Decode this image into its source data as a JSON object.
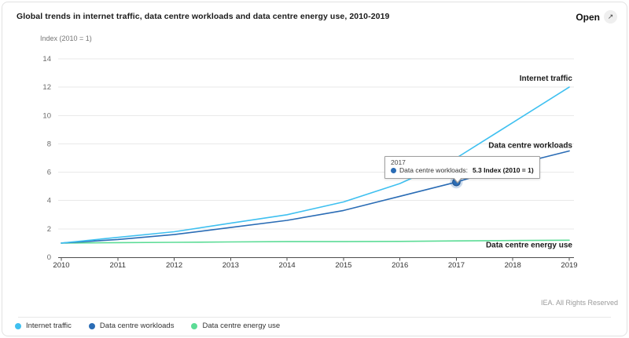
{
  "header": {
    "title": "Global trends in internet traffic, data centre workloads and data centre energy use, 2010-2019",
    "open_label": "Open",
    "open_icon": "↗"
  },
  "footer": {
    "rights": "IEA. All Rights Reserved"
  },
  "tooltip": {
    "year": "2017",
    "series_label": "Data centre workloads:",
    "value_text": "5.3 Index (2010 = 1)"
  },
  "legend": {
    "items": [
      {
        "label": "Internet traffic",
        "color": "#3fc0f0"
      },
      {
        "label": "Data centre workloads",
        "color": "#2a6cb5"
      },
      {
        "label": "Data centre energy use",
        "color": "#5cdc96"
      }
    ]
  },
  "chart_data": {
    "type": "line",
    "title": "Global trends in internet traffic, data centre workloads and data centre energy use, 2010-2019",
    "xlabel": "",
    "ylabel": "Index (2010 = 1)",
    "x": [
      2010,
      2011,
      2012,
      2013,
      2014,
      2015,
      2016,
      2017,
      2018,
      2019
    ],
    "series": [
      {
        "name": "Internet traffic",
        "color": "#3fc0f0",
        "values": [
          1.0,
          1.4,
          1.8,
          2.4,
          3.0,
          3.9,
          5.2,
          7.0,
          9.5,
          12.0
        ]
      },
      {
        "name": "Data centre workloads",
        "color": "#2a6cb5",
        "values": [
          1.0,
          1.25,
          1.6,
          2.1,
          2.6,
          3.3,
          4.3,
          5.3,
          6.5,
          7.5
        ]
      },
      {
        "name": "Data centre energy use",
        "color": "#5cdc96",
        "values": [
          1.0,
          1.03,
          1.05,
          1.08,
          1.1,
          1.1,
          1.12,
          1.15,
          1.18,
          1.2
        ]
      }
    ],
    "ylim": [
      0,
      14
    ],
    "yticks": [
      0,
      2,
      4,
      6,
      8,
      10,
      12,
      14
    ],
    "grid": true,
    "legend_position": "bottom-left",
    "highlight": {
      "series": "Data centre workloads",
      "x": 2017,
      "value": 5.3
    }
  }
}
